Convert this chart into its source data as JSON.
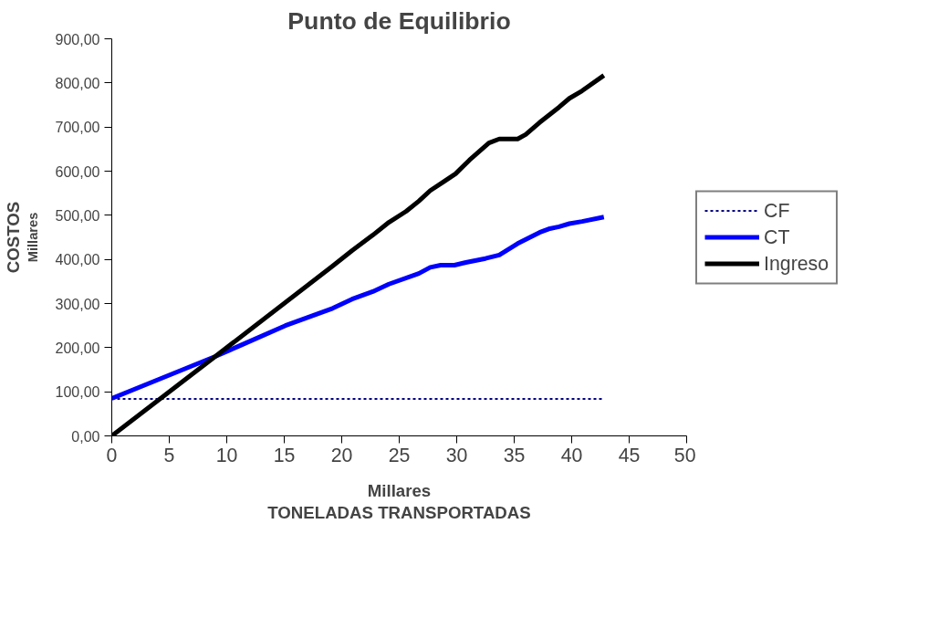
{
  "chart_data": {
    "type": "line",
    "title": "Punto de Equilibrio",
    "xlabel": "TONELADAS TRANSPORTADAS",
    "ylabel": "COSTOS",
    "annotations": [
      "Millares",
      "Millares"
    ],
    "xlim": [
      0,
      50
    ],
    "xticks": [
      0,
      5,
      10,
      15,
      20,
      25,
      30,
      35,
      40,
      45,
      50
    ],
    "ylim": [
      0,
      900
    ],
    "yticks": [
      {
        "value": 0,
        "label": "0,00"
      },
      {
        "value": 100,
        "label": "100,00"
      },
      {
        "value": 200,
        "label": "200,00"
      },
      {
        "value": 300,
        "label": "300,00"
      },
      {
        "value": 400,
        "label": "400,00"
      },
      {
        "value": 500,
        "label": "500,00"
      },
      {
        "value": 600,
        "label": "600,00"
      },
      {
        "value": 700,
        "label": "700,00"
      },
      {
        "value": 800,
        "label": "800,00"
      },
      {
        "value": 900,
        "label": "900,00"
      }
    ],
    "grid": false,
    "legend": "right",
    "series": [
      {
        "name": "CF",
        "color": "#000080",
        "line_style": "dotted",
        "x": [
          0,
          42.8
        ],
        "values": [
          84,
          84
        ]
      },
      {
        "name": "CT",
        "color": "#0000ff",
        "line_style": "solid",
        "x": [
          0,
          9.0,
          11.1,
          15.1,
          19.2,
          20.9,
          22.7,
          24.1,
          26.7,
          27.7,
          28.6,
          29.8,
          30.8,
          32.5,
          33.7,
          35.3,
          37.2,
          38.0,
          38.9,
          39.8,
          40.9,
          42.8
        ],
        "values": [
          85,
          180,
          204,
          250,
          289,
          310,
          327,
          344,
          368,
          382,
          387,
          387,
          393,
          402,
          410,
          436,
          461,
          469,
          474,
          481,
          486,
          496
        ]
      },
      {
        "name": "Ingreso",
        "color": "#000000",
        "line_style": "solid",
        "x": [
          0,
          9.0,
          19.2,
          20.9,
          22.7,
          24.1,
          25.6,
          26.7,
          27.7,
          28.8,
          29.9,
          31.1,
          32.8,
          33.7,
          35.3,
          36.0,
          37.2,
          38.9,
          39.8,
          40.9,
          42.8
        ],
        "values": [
          0,
          180,
          385,
          420,
          455,
          484,
          509,
          532,
          556,
          575,
          594,
          625,
          664,
          673,
          673,
          683,
          710,
          745,
          765,
          782,
          817
        ]
      }
    ]
  }
}
